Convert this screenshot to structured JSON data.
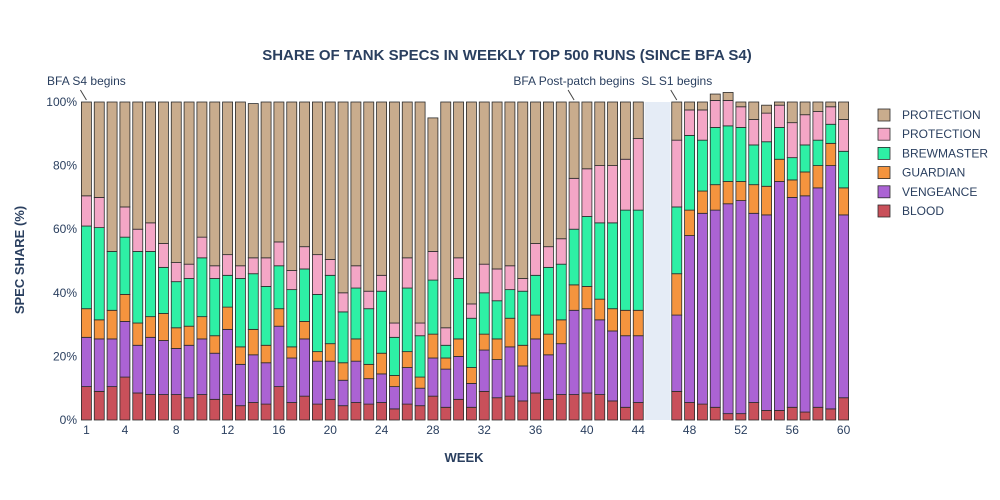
{
  "chart_data": {
    "type": "bar",
    "stacked": true,
    "title": "SHARE OF TANK SPECS IN WEEKLY TOP 500 RUNS (SINCE BFA S4)",
    "xlabel": "WEEK",
    "ylabel": "SPEC SHARE (%)",
    "xlim": [
      0.5,
      60.5
    ],
    "ylim": [
      0,
      100
    ],
    "x_ticks": [
      1,
      4,
      8,
      12,
      16,
      20,
      24,
      28,
      32,
      36,
      40,
      44,
      48,
      52,
      56,
      60
    ],
    "y_ticks": [
      0,
      20,
      40,
      60,
      80,
      100
    ],
    "y_tick_labels": [
      "0%",
      "20%",
      "40%",
      "60%",
      "80%",
      "100%"
    ],
    "shaded_region": [
      44.5,
      46.5
    ],
    "shaded_color": "#e5ecf6",
    "annotations": [
      {
        "text": "BFA S4 begins",
        "x": 1
      },
      {
        "text": "BFA Post-patch begins",
        "x": 39
      },
      {
        "text": "SL S1 begins",
        "x": 47
      }
    ],
    "legend_position": "right",
    "weeks": [
      1,
      2,
      3,
      4,
      5,
      6,
      7,
      8,
      9,
      10,
      11,
      12,
      13,
      14,
      15,
      16,
      17,
      18,
      19,
      20,
      21,
      22,
      23,
      24,
      25,
      26,
      27,
      28,
      29,
      30,
      31,
      32,
      33,
      34,
      35,
      36,
      37,
      38,
      39,
      40,
      41,
      42,
      43,
      44,
      47,
      48,
      49,
      50,
      51,
      52,
      53,
      54,
      55,
      56,
      57,
      58,
      59,
      60
    ],
    "series": [
      {
        "name": "BLOOD",
        "color": "#c9505a",
        "values": [
          10.5,
          9,
          10.5,
          13.5,
          8.5,
          8,
          8,
          8,
          7,
          8,
          6.5,
          8,
          4.5,
          5.5,
          5,
          10.5,
          5.5,
          7.5,
          5,
          6.5,
          4.5,
          5.5,
          5,
          5.5,
          3.5,
          5,
          4.5,
          7.5,
          4,
          6.5,
          4,
          9,
          7,
          7.5,
          6,
          8.5,
          6.5,
          8,
          8,
          8.5,
          8,
          6,
          4,
          5.5,
          9,
          5.5,
          5,
          4,
          2,
          2,
          5.5,
          3,
          3,
          4,
          2.5,
          4,
          3.5,
          7
        ]
      },
      {
        "name": "VENGEANCE",
        "color": "#ab63d4",
        "values": [
          15.5,
          16.5,
          15,
          17.5,
          15,
          18,
          17,
          14.5,
          16.5,
          17.5,
          14.5,
          20.5,
          13,
          15,
          13,
          19,
          14,
          18,
          13.5,
          12,
          8,
          13,
          8,
          9,
          7,
          11.5,
          5.5,
          12,
          12,
          13.5,
          7.5,
          13,
          12,
          15.5,
          11,
          17,
          14,
          16,
          26.5,
          26.5,
          23.5,
          22,
          22.5,
          21,
          24,
          52.5,
          60,
          62,
          66,
          67,
          59.5,
          61.5,
          72,
          66,
          68,
          69,
          76.5,
          57.5
        ]
      },
      {
        "name": "GUARDIAN",
        "color": "#f5943e",
        "values": [
          9,
          6,
          9,
          8.5,
          7,
          6.5,
          8.5,
          6.5,
          6,
          7,
          5.5,
          7,
          5.5,
          8,
          5.5,
          5.5,
          3.5,
          5.5,
          3,
          5.5,
          5.5,
          7,
          4.5,
          6.5,
          3.5,
          5,
          3.5,
          7.5,
          3.5,
          5.5,
          5,
          5,
          6.5,
          9,
          6.5,
          7.5,
          6.5,
          7.5,
          8,
          7,
          6.5,
          7,
          8,
          8,
          13,
          8,
          7,
          8,
          7,
          6,
          9,
          9,
          7,
          5.5,
          7.5,
          7,
          7,
          8.5
        ]
      },
      {
        "name": "BREWMASTER",
        "color": "#2ef0a5",
        "values": [
          26,
          29,
          18.5,
          18,
          22.5,
          20.5,
          14.5,
          14.5,
          15,
          18.5,
          18,
          10,
          21.5,
          17.5,
          18.5,
          13.5,
          18,
          16.5,
          18,
          21.5,
          16,
          16,
          17.5,
          19.5,
          12,
          20,
          13,
          17,
          4,
          19,
          15.5,
          13,
          12,
          9,
          17,
          12.5,
          21,
          17.5,
          17.5,
          22,
          24,
          27,
          31.5,
          31.5,
          21,
          23.5,
          16,
          18,
          17.5,
          17,
          12.5,
          14,
          10,
          7,
          8.5,
          8,
          6,
          11.5
        ]
      },
      {
        "name": "PROTECTION",
        "color": "#f4a6c6",
        "values": [
          9.5,
          9.5,
          0,
          9.5,
          7,
          9,
          7.5,
          6,
          4.5,
          6.5,
          4,
          6.5,
          4,
          5,
          9,
          7.5,
          6,
          7,
          12.5,
          5,
          6,
          7,
          5.5,
          5,
          4.5,
          9.5,
          4,
          9,
          5.5,
          6.5,
          4.5,
          9,
          10,
          7.5,
          4,
          10,
          6.5,
          8,
          16,
          15,
          18,
          18,
          16,
          22.5,
          21,
          8,
          9.5,
          8.5,
          8,
          6.5,
          8,
          9,
          7,
          11,
          9.5,
          9,
          5.5,
          10
        ]
      },
      {
        "name": "PROTECTION",
        "color": "#c9ac8d",
        "values": [
          29.5,
          30,
          47,
          33,
          40,
          38,
          44.5,
          50.5,
          51,
          42.5,
          51.5,
          48,
          51.5,
          48.5,
          49,
          44,
          53,
          45.5,
          48,
          49.5,
          60,
          51.5,
          59.5,
          54.5,
          69.5,
          49,
          69.5,
          42,
          71,
          49,
          63.5,
          51,
          52.5,
          51.5,
          55.5,
          44.5,
          45.5,
          43,
          24,
          21,
          20,
          20,
          18,
          11.5,
          12,
          2.5,
          2.5,
          2,
          2.5,
          1.5,
          5.5,
          2.5,
          1,
          6.5,
          4,
          3,
          1.5,
          5.5
        ]
      }
    ]
  }
}
